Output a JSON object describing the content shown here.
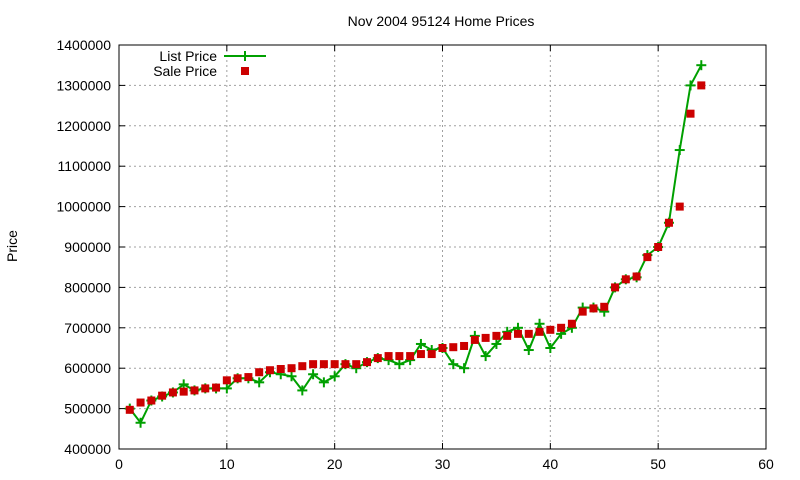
{
  "chart_data": {
    "type": "line",
    "title": "Nov 2004 95124 Home Prices",
    "xlabel": "",
    "ylabel": "Price",
    "xlim": [
      0,
      60
    ],
    "ylim": [
      400000,
      1400000
    ],
    "x_ticks": [
      "0",
      "10",
      "20",
      "30",
      "40",
      "50",
      "60"
    ],
    "y_ticks": [
      "400000",
      "500000",
      "600000",
      "700000",
      "800000",
      "900000",
      "1000000",
      "1100000",
      "1200000",
      "1300000",
      "1400000"
    ],
    "grid": true,
    "legend_position": "top-left",
    "series": [
      {
        "name": "List Price",
        "style": "line-points",
        "color": "#00a000",
        "x": [
          1,
          2,
          3,
          4,
          5,
          6,
          7,
          8,
          9,
          10,
          11,
          12,
          13,
          14,
          15,
          16,
          17,
          18,
          19,
          20,
          21,
          22,
          23,
          24,
          25,
          26,
          27,
          28,
          29,
          30,
          31,
          32,
          33,
          34,
          35,
          36,
          37,
          38,
          39,
          40,
          41,
          42,
          43,
          44,
          45,
          46,
          47,
          48,
          49,
          50,
          51,
          52,
          53,
          54
        ],
        "values": [
          500000,
          465000,
          520000,
          530000,
          540000,
          560000,
          545000,
          550000,
          550000,
          550000,
          575000,
          575000,
          565000,
          590000,
          585000,
          580000,
          545000,
          585000,
          565000,
          580000,
          610000,
          600000,
          615000,
          625000,
          620000,
          610000,
          620000,
          660000,
          645000,
          650000,
          610000,
          600000,
          680000,
          630000,
          660000,
          690000,
          700000,
          645000,
          710000,
          650000,
          685000,
          700000,
          750000,
          750000,
          740000,
          800000,
          820000,
          825000,
          880000,
          900000,
          960000,
          1140000,
          1300000,
          1350000
        ]
      },
      {
        "name": "Sale Price",
        "style": "points",
        "color": "#cc0000",
        "x": [
          1,
          2,
          3,
          4,
          5,
          6,
          7,
          8,
          9,
          10,
          11,
          12,
          13,
          14,
          15,
          16,
          17,
          18,
          19,
          20,
          21,
          22,
          23,
          24,
          25,
          26,
          27,
          28,
          29,
          30,
          31,
          32,
          33,
          34,
          35,
          36,
          37,
          38,
          39,
          40,
          41,
          42,
          43,
          44,
          45,
          46,
          47,
          48,
          49,
          50,
          51,
          52,
          53,
          54
        ],
        "values": [
          497000,
          515000,
          520000,
          532000,
          540000,
          542000,
          545000,
          550000,
          552000,
          570000,
          575000,
          578000,
          590000,
          595000,
          598000,
          600000,
          605000,
          610000,
          610000,
          610000,
          610000,
          610000,
          615000,
          625000,
          630000,
          630000,
          630000,
          635000,
          635000,
          650000,
          652000,
          655000,
          670000,
          675000,
          680000,
          680000,
          685000,
          685000,
          690000,
          695000,
          700000,
          710000,
          740000,
          748000,
          752000,
          800000,
          820000,
          827000,
          875000,
          900000,
          960000,
          1000000,
          1230000,
          1300000
        ]
      }
    ]
  }
}
